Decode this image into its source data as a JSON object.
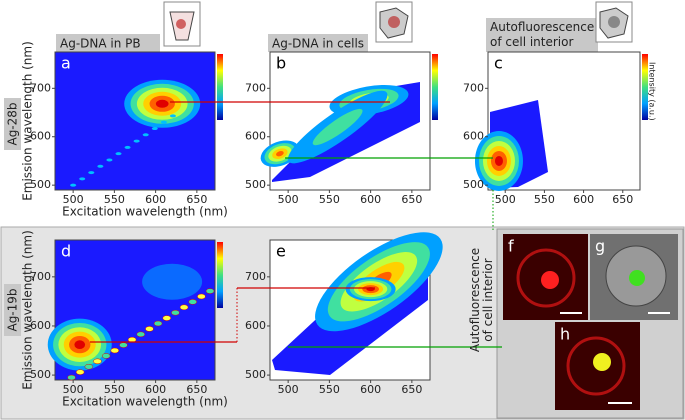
{
  "columns": [
    "Ag-DNA in PB",
    "Ag-DNA in cells",
    "Autofluorescence of cell interior"
  ],
  "rows": [
    "Ag-28b",
    "Ag-19b"
  ],
  "axes": {
    "x_label": "Excitation wavelength (nm)",
    "y_label": "Emission wavelength (nm)",
    "xticks": [
      500,
      550,
      600,
      650
    ],
    "yticks": [
      500,
      600,
      700
    ],
    "xlim": [
      478,
      672
    ],
    "ylim": [
      490,
      775
    ]
  },
  "panels": [
    "a",
    "b",
    "c",
    "d",
    "e"
  ],
  "colorbar_label": "Intensity (a.u.)",
  "side_label": "Autofluorescence of cell interior",
  "micrographs": [
    "f",
    "g",
    "h"
  ]
}
